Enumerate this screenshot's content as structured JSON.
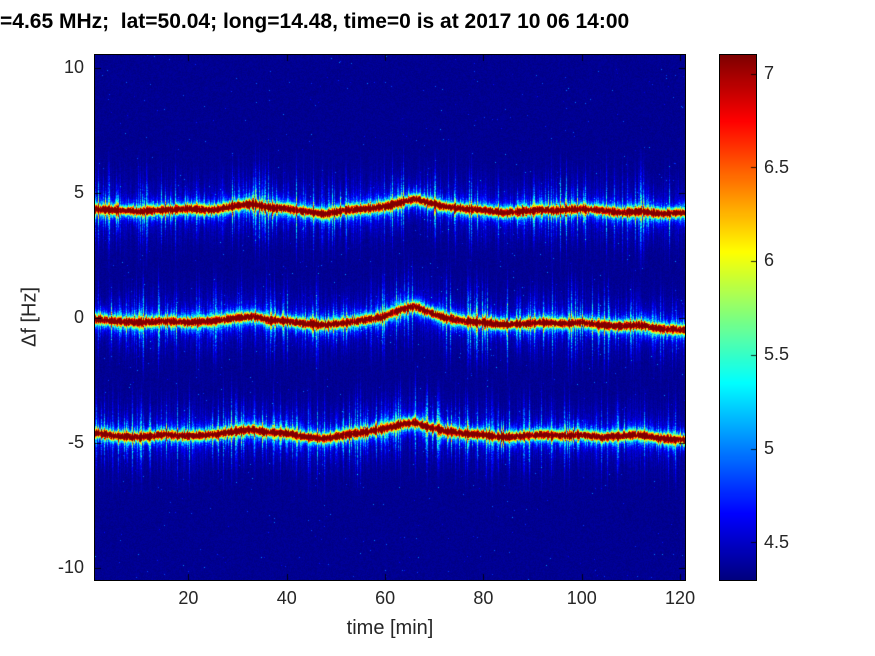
{
  "colors": {
    "figure_background": "#ffffff",
    "axes_text": "#262626",
    "title_text": "#000000",
    "plot_border": "#000000"
  },
  "chart_data": {
    "type": "heatmap",
    "title": "=4.65 MHz;  lat=50.04; long=14.48, time=0 is at 2017 10 06 14:00",
    "xlabel": "time [min]",
    "ylabel": "Δf [Hz]",
    "xlim": [
      1,
      121
    ],
    "ylim": [
      -10.5,
      10.5
    ],
    "x_ticks": [
      20,
      40,
      60,
      80,
      100,
      120
    ],
    "y_ticks": [
      10,
      5,
      0,
      -5,
      -10
    ],
    "grid": false,
    "colormap": "jet",
    "legend": "none",
    "colorbar": {
      "position": "right",
      "clim": [
        4.3,
        7.1
      ],
      "ticks": [
        4.5,
        5,
        5.5,
        6,
        6.5,
        7
      ]
    },
    "background_value": 4.35,
    "bands": [
      {
        "name": "upper-doppler-trace",
        "approx_center_hz": 4.3,
        "peak_value": 7.1,
        "t": [
          0,
          5,
          10,
          15,
          20,
          25,
          30,
          33,
          36,
          40,
          44,
          48,
          52,
          56,
          60,
          63,
          66,
          69,
          72,
          76,
          80,
          84,
          88,
          92,
          96,
          100,
          104,
          108,
          112,
          116,
          120,
          122
        ],
        "df": [
          4.35,
          4.3,
          4.25,
          4.3,
          4.35,
          4.3,
          4.5,
          4.55,
          4.4,
          4.35,
          4.25,
          4.15,
          4.3,
          4.35,
          4.45,
          4.6,
          4.75,
          4.6,
          4.45,
          4.35,
          4.3,
          4.2,
          4.25,
          4.3,
          4.3,
          4.35,
          4.3,
          4.2,
          4.25,
          4.15,
          4.2,
          4.2
        ]
      },
      {
        "name": "middle-doppler-trace",
        "approx_center_hz": -0.2,
        "peak_value": 7.1,
        "t": [
          0,
          5,
          10,
          15,
          20,
          25,
          30,
          33,
          36,
          40,
          44,
          48,
          52,
          56,
          60,
          63,
          66,
          69,
          72,
          76,
          80,
          84,
          88,
          92,
          96,
          100,
          104,
          108,
          112,
          116,
          120,
          122
        ],
        "df": [
          -0.05,
          -0.15,
          -0.2,
          -0.15,
          -0.2,
          -0.15,
          0.0,
          0.05,
          -0.1,
          -0.15,
          -0.25,
          -0.3,
          -0.2,
          -0.1,
          0.05,
          0.3,
          0.45,
          0.2,
          0.0,
          -0.15,
          -0.2,
          -0.3,
          -0.25,
          -0.2,
          -0.25,
          -0.2,
          -0.3,
          -0.35,
          -0.3,
          -0.45,
          -0.5,
          -0.5
        ]
      },
      {
        "name": "lower-doppler-trace",
        "approx_center_hz": -4.7,
        "peak_value": 7.1,
        "t": [
          0,
          5,
          10,
          15,
          20,
          25,
          30,
          33,
          36,
          40,
          44,
          48,
          52,
          56,
          60,
          63,
          66,
          69,
          72,
          76,
          80,
          84,
          88,
          92,
          96,
          100,
          104,
          108,
          112,
          116,
          120,
          122
        ],
        "df": [
          -4.6,
          -4.75,
          -4.8,
          -4.7,
          -4.75,
          -4.7,
          -4.55,
          -4.5,
          -4.6,
          -4.65,
          -4.8,
          -4.85,
          -4.7,
          -4.6,
          -4.45,
          -4.3,
          -4.2,
          -4.4,
          -4.55,
          -4.65,
          -4.7,
          -4.8,
          -4.75,
          -4.7,
          -4.75,
          -4.7,
          -4.8,
          -4.75,
          -4.7,
          -4.85,
          -4.9,
          -4.9
        ]
      }
    ]
  }
}
